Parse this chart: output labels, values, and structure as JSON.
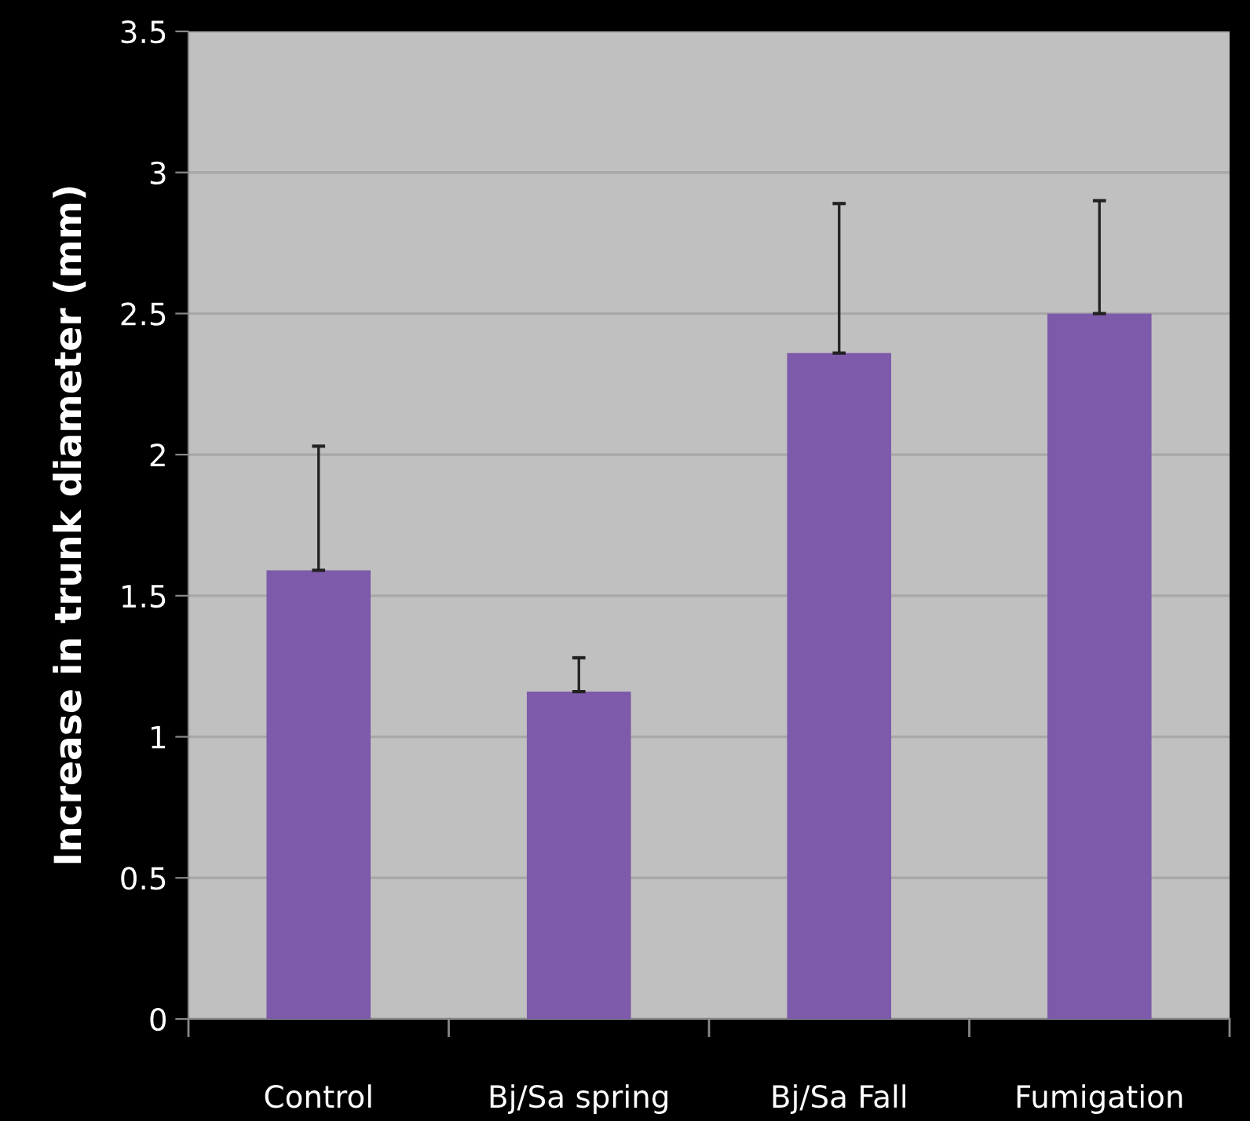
{
  "chart_data": {
    "type": "bar",
    "ylabel": "Increase in trunk diameter (mm)",
    "categories": [
      "Control",
      "Bj/Sa spring",
      "Bj/Sa Fall",
      "Fumigation"
    ],
    "values": [
      1.59,
      1.16,
      2.36,
      2.5
    ],
    "errors": [
      [
        1.59,
        2.03
      ],
      [
        1.16,
        1.28
      ],
      [
        2.36,
        2.89
      ],
      [
        2.5,
        2.9
      ]
    ],
    "color": "#7e5aaa",
    "ylim": [
      0,
      3.5
    ],
    "yticks": [
      0,
      0.5,
      1,
      1.5,
      2,
      2.5,
      3,
      3.5
    ],
    "grid": "y",
    "legend": false
  }
}
